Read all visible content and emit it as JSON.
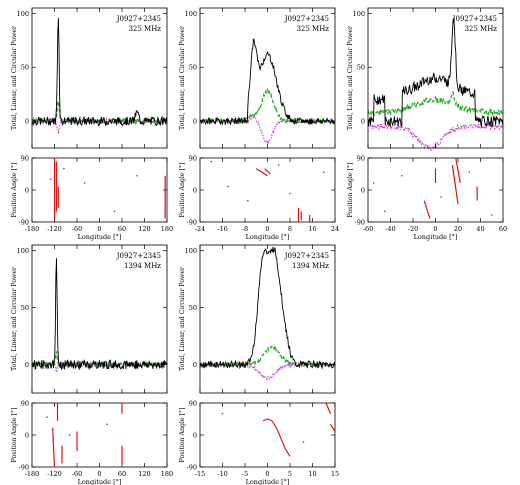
{
  "colors": {
    "total": "#000000",
    "linear": "#22aa22",
    "circular": "#cc44cc",
    "pa": "#dd1111"
  },
  "chart_data": [
    {
      "type": "line",
      "source": "J0927+2345",
      "frequency": "325 MHz",
      "ylabel_profile": "Total, Linear, and Circular Power",
      "ylabel_pa": "Position Angle [°]",
      "xlabel": "Longitude [°]",
      "xlim": [
        -180,
        180
      ],
      "xticks": [
        -180,
        -120,
        -60,
        0,
        60,
        120,
        180
      ],
      "ylim": [
        -25,
        105
      ],
      "yticks": [
        0,
        50,
        100
      ],
      "pa_ylim": [
        -90,
        90
      ],
      "pa_yticks": [
        -90,
        0,
        90
      ],
      "profile": {
        "total_peak": 100,
        "peak_longitude": -110,
        "linear_peak": 20,
        "circular_min": -10
      },
      "pa_segments": [
        [
          -120,
          90,
          -120,
          -85
        ],
        [
          -115,
          80,
          -115,
          -60
        ],
        [
          -110,
          10,
          -110,
          -50
        ],
        [
          175,
          40,
          175,
          -80
        ]
      ],
      "pa_points": [
        [
          -130,
          30
        ],
        [
          -95,
          60
        ],
        [
          -40,
          20
        ],
        [
          40,
          -60
        ],
        [
          100,
          40
        ]
      ]
    },
    {
      "type": "line",
      "source": "J0927+2345",
      "frequency": "325 MHz",
      "ylabel_profile": "Total, Linear, and Circular Power",
      "ylabel_pa": "Position Angle [°]",
      "xlabel": "Longitude [°]",
      "xlim": [
        -24,
        24
      ],
      "xticks": [
        -24,
        -16,
        -8,
        0,
        8,
        16,
        24
      ],
      "ylim": [
        -25,
        105
      ],
      "yticks": [
        0,
        50,
        100
      ],
      "pa_ylim": [
        -90,
        90
      ],
      "pa_yticks": [
        -90,
        0,
        90
      ],
      "profile": {
        "total_peak": 100,
        "peak_longitude": -5,
        "linear_peak": 28,
        "circular_min": -20
      },
      "pa_segments": [
        [
          -4,
          60,
          0,
          40
        ],
        [
          -1,
          60,
          1,
          45
        ],
        [
          11,
          -50,
          11,
          -90
        ],
        [
          12,
          -60,
          12,
          -85
        ],
        [
          15,
          -70,
          15,
          -90
        ]
      ],
      "pa_points": [
        [
          -20,
          80
        ],
        [
          -14,
          10
        ],
        [
          -7,
          -30
        ],
        [
          4,
          70
        ],
        [
          8,
          -10
        ],
        [
          20,
          50
        ]
      ]
    },
    {
      "type": "line",
      "source": "J0927+2345",
      "frequency": "325 MHz",
      "ylabel_profile": "Total, Linear, and Circular Power",
      "ylabel_pa": "Position Angle [°]",
      "xlabel": "Longitude [°]",
      "xlim": [
        -60,
        60
      ],
      "xticks": [
        -60,
        -40,
        -20,
        0,
        20,
        40,
        60
      ],
      "ylim": [
        -25,
        105
      ],
      "yticks": [
        0,
        50,
        100
      ],
      "pa_ylim": [
        -90,
        90
      ],
      "pa_yticks": [
        -90,
        0,
        90
      ],
      "profile": {
        "total_peak": 100,
        "peak_longitude": 16,
        "linear_peak": 20,
        "circular_min": -25
      },
      "pa_segments": [
        [
          -10,
          -30,
          -5,
          -80
        ],
        [
          0,
          60,
          0,
          20
        ],
        [
          15,
          70,
          20,
          -40
        ],
        [
          18,
          90,
          22,
          20
        ],
        [
          37,
          10,
          37,
          -30
        ]
      ],
      "pa_points": [
        [
          -55,
          20
        ],
        [
          -45,
          -60
        ],
        [
          -30,
          40
        ],
        [
          5,
          -20
        ],
        [
          30,
          50
        ],
        [
          50,
          -70
        ]
      ]
    },
    {
      "type": "line",
      "source": "J0927+2345",
      "frequency": "1394 MHz",
      "ylabel_profile": "Total, Linear, and Circular Power",
      "ylabel_pa": "Position Angle [°]",
      "xlabel": "Longitude [°]",
      "xlim": [
        -180,
        180
      ],
      "xticks": [
        -180,
        -120,
        -60,
        0,
        60,
        120,
        180
      ],
      "ylim": [
        -25,
        105
      ],
      "yticks": [
        0,
        50,
        100
      ],
      "pa_ylim": [
        -90,
        90
      ],
      "pa_yticks": [
        -90,
        0,
        90
      ],
      "profile": {
        "total_peak": 100,
        "peak_longitude": -115,
        "linear_peak": 10,
        "circular_min": -6
      },
      "pa_segments": [
        [
          -125,
          20,
          -120,
          -90
        ],
        [
          -112,
          90,
          -112,
          40
        ],
        [
          -100,
          -30,
          -100,
          -80
        ],
        [
          -60,
          10,
          -60,
          -45
        ],
        [
          60,
          90,
          60,
          60
        ],
        [
          60,
          -30,
          60,
          -80
        ]
      ],
      "pa_points": [
        [
          -140,
          50
        ],
        [
          -80,
          0
        ],
        [
          20,
          30
        ]
      ]
    },
    {
      "type": "line",
      "source": "J0927+2345",
      "frequency": "1394 MHz",
      "ylabel_profile": "Total, Linear, and Circular Power",
      "ylabel_pa": "Position Angle [°]",
      "xlabel": "Longitude [°]",
      "xlim": [
        -15,
        15
      ],
      "xticks": [
        -15,
        -10,
        -5,
        0,
        5,
        10,
        15
      ],
      "ylim": [
        -25,
        105
      ],
      "yticks": [
        0,
        50,
        100
      ],
      "pa_ylim": [
        -90,
        90
      ],
      "pa_yticks": [
        -90,
        0,
        90
      ],
      "profile": {
        "total_peak": 100,
        "peak_longitude": 1,
        "linear_peak": 15,
        "circular_min": -12
      },
      "pa_segments": [
        [
          13,
          90,
          14,
          60
        ],
        [
          14,
          30,
          15,
          10
        ]
      ],
      "pa_curve": [
        [
          -1,
          40
        ],
        [
          0,
          45
        ],
        [
          1,
          40
        ],
        [
          2,
          20
        ],
        [
          3,
          -10
        ],
        [
          4,
          -40
        ],
        [
          5,
          -60
        ]
      ],
      "pa_points": [
        [
          -10,
          60
        ],
        [
          8,
          -20
        ]
      ]
    }
  ]
}
